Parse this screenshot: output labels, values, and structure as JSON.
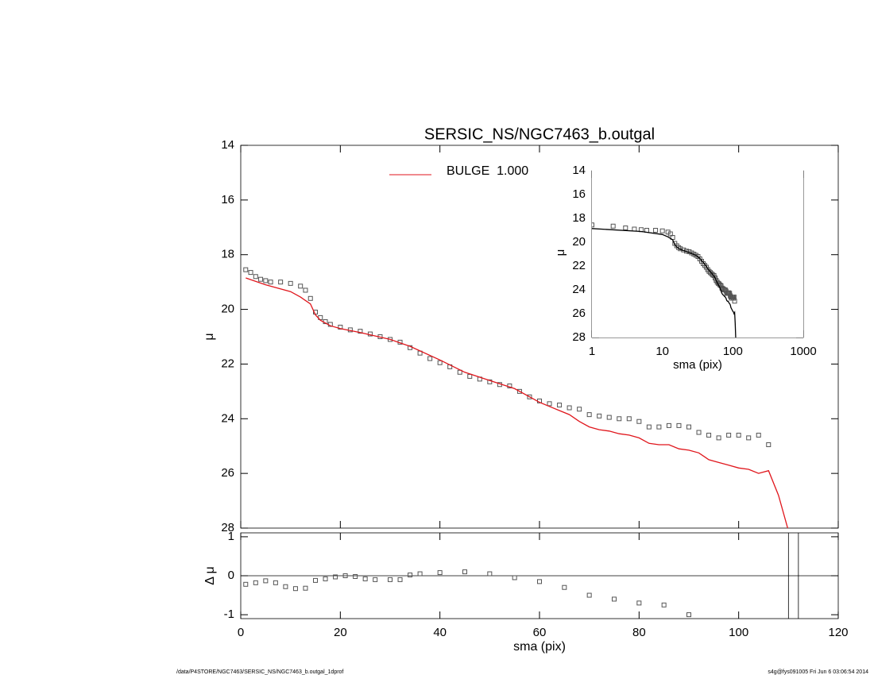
{
  "chart_data": [
    {
      "type": "line",
      "title": "SERSIC_NS/NGC7463_b.outgal",
      "ylabel": "μ",
      "xlim": [
        0,
        120
      ],
      "xticks": [
        0,
        20,
        40,
        60,
        80,
        100,
        120
      ],
      "ylim": [
        14,
        28
      ],
      "yticks": [
        14,
        16,
        18,
        20,
        22,
        24,
        26,
        28
      ],
      "y_inverted": true,
      "legend": "top",
      "series": [
        {
          "style": "markers",
          "color": "#555555",
          "x": [
            1,
            2,
            3,
            4,
            5,
            6,
            8,
            10,
            12,
            13,
            14,
            15,
            16,
            17,
            18,
            20,
            22,
            24,
            26,
            28,
            30,
            32,
            34,
            36,
            38,
            40,
            42,
            44,
            46,
            48,
            50,
            52,
            54,
            56,
            58,
            60,
            62,
            64,
            66,
            68,
            70,
            72,
            74,
            76,
            78,
            80,
            82,
            84,
            86,
            88,
            90,
            92,
            94,
            96,
            98,
            100,
            102,
            104,
            106
          ],
          "values": [
            18.55,
            18.65,
            18.8,
            18.9,
            18.95,
            19.0,
            19.0,
            19.05,
            19.15,
            19.3,
            19.6,
            20.1,
            20.3,
            20.45,
            20.55,
            20.65,
            20.75,
            20.8,
            20.9,
            21.0,
            21.1,
            21.2,
            21.4,
            21.6,
            21.8,
            21.95,
            22.1,
            22.3,
            22.45,
            22.55,
            22.65,
            22.75,
            22.8,
            23.0,
            23.2,
            23.35,
            23.45,
            23.5,
            23.6,
            23.65,
            23.85,
            23.9,
            23.95,
            24.0,
            24.0,
            24.1,
            24.3,
            24.3,
            24.25,
            24.25,
            24.3,
            24.5,
            24.6,
            24.7,
            24.6,
            24.6,
            24.7,
            24.6,
            24.95
          ]
        },
        {
          "name": "BULGE  1.000",
          "style": "line",
          "color": "#e0161c",
          "x": [
            1,
            5,
            10,
            12,
            14,
            15,
            16,
            18,
            20,
            24,
            30,
            34,
            40,
            45,
            50,
            55,
            60,
            62,
            64,
            66,
            68,
            70,
            72,
            74,
            76,
            78,
            80,
            82,
            84,
            86,
            88,
            90,
            92,
            94,
            96,
            98,
            100,
            102,
            104,
            106,
            108,
            110
          ],
          "values": [
            18.85,
            19.1,
            19.35,
            19.55,
            19.8,
            20.2,
            20.4,
            20.6,
            20.7,
            20.85,
            21.1,
            21.35,
            21.85,
            22.3,
            22.6,
            22.9,
            23.4,
            23.55,
            23.7,
            23.85,
            24.1,
            24.3,
            24.4,
            24.45,
            24.55,
            24.6,
            24.7,
            24.9,
            24.95,
            24.95,
            25.1,
            25.15,
            25.25,
            25.5,
            25.6,
            25.7,
            25.8,
            25.85,
            26.0,
            25.9,
            26.8,
            28.1
          ]
        }
      ]
    },
    {
      "type": "scatter",
      "xlabel": "sma (pix)",
      "ylabel": "Δ μ",
      "xlim": [
        0,
        120
      ],
      "xticks": [
        0,
        20,
        40,
        60,
        80,
        100,
        120
      ],
      "ylim": [
        -1.1,
        1.1
      ],
      "yticks": [
        -1,
        0,
        1
      ],
      "hline": 0,
      "vlines": [
        110,
        112
      ],
      "x": [
        1,
        3,
        5,
        7,
        9,
        11,
        13,
        15,
        17,
        19,
        21,
        23,
        25,
        27,
        30,
        32,
        34,
        36,
        40,
        45,
        50,
        55,
        60,
        65,
        70,
        75,
        80,
        85,
        90
      ],
      "values": [
        -0.22,
        -0.18,
        -0.13,
        -0.18,
        -0.28,
        -0.33,
        -0.32,
        -0.12,
        -0.08,
        -0.03,
        0.0,
        -0.02,
        -0.08,
        -0.1,
        -0.1,
        -0.1,
        0.02,
        0.05,
        0.08,
        0.1,
        0.05,
        -0.05,
        -0.15,
        -0.3,
        -0.5,
        -0.6,
        -0.7,
        -0.75,
        -1.0
      ],
      "color": "#555555"
    },
    {
      "type": "inset",
      "xlabel": "sma (pix)",
      "ylabel": "μ",
      "log_x": true,
      "xlim": [
        1,
        1000
      ],
      "xticks": [
        1,
        10,
        100,
        1000
      ],
      "ylim": [
        14,
        28
      ],
      "yticks": [
        14,
        16,
        18,
        20,
        22,
        24,
        26,
        28
      ],
      "line_color": "#000000",
      "marker_color": "#555555"
    }
  ],
  "footer": {
    "left": "/data/P4STORE/NGC7463/SERSIC_NS/NGC7463_b.outgal_1dprof",
    "right": "s4g@fys091005  Fri Jun  6 03:06:54 2014"
  }
}
